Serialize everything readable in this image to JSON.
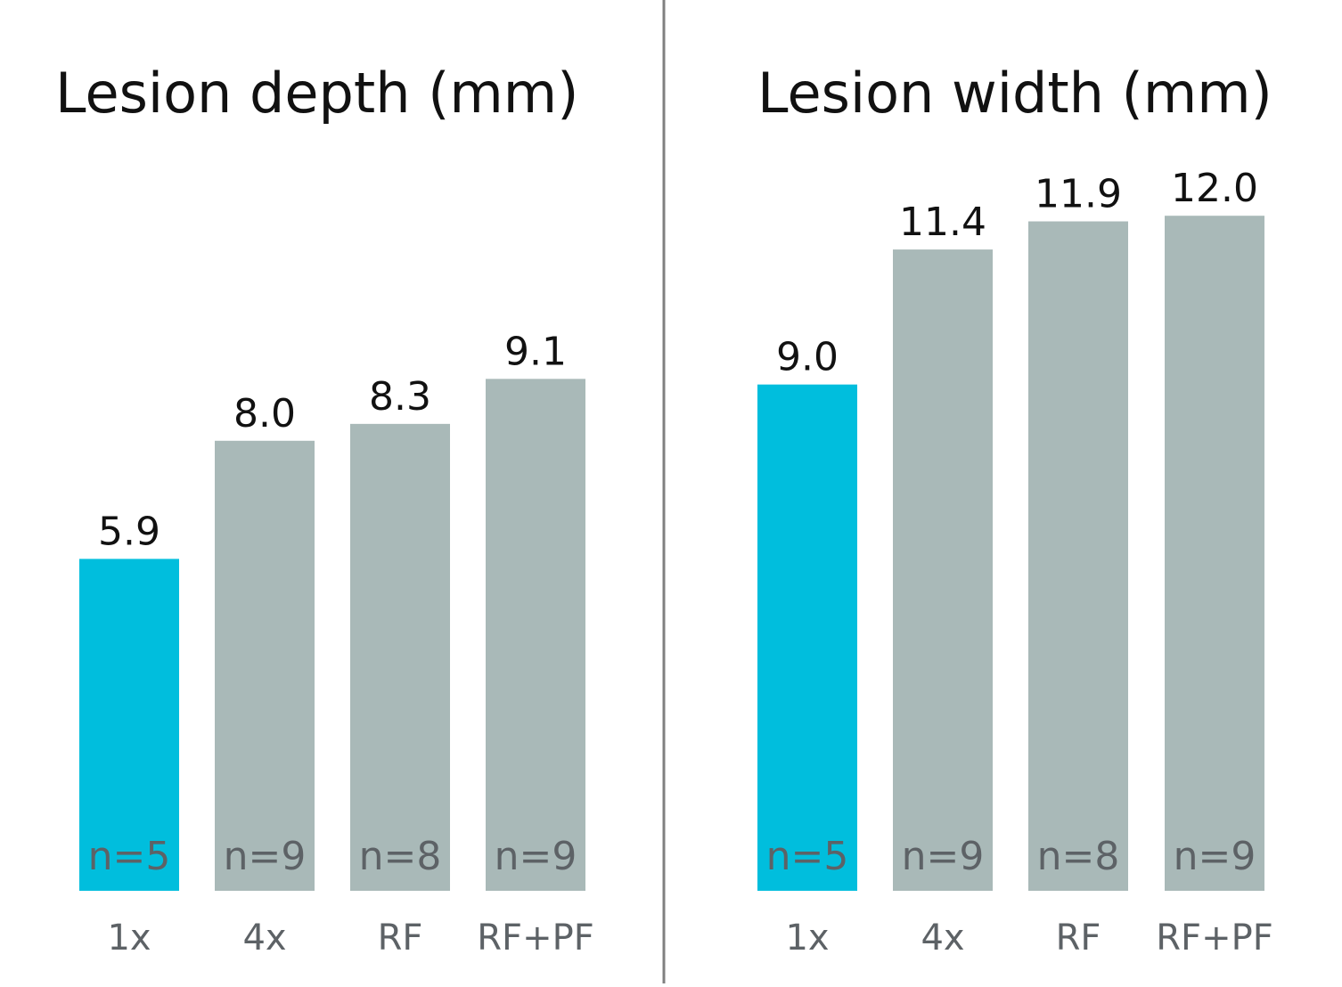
{
  "colors": {
    "highlight": "#00bedd",
    "bar": "#a9b9b8",
    "divider": "#808080"
  },
  "chart_data": [
    {
      "type": "bar",
      "title": "Lesion depth (mm)",
      "categories": [
        "1x",
        "4x",
        "RF",
        "RF+PF"
      ],
      "values": [
        5.9,
        8.0,
        8.3,
        9.1
      ],
      "value_labels": [
        "5.9",
        "8.0",
        "8.3",
        "9.1"
      ],
      "n_labels": [
        "n=5",
        "n=9",
        "n=8",
        "n=9"
      ],
      "highlight_index": 0,
      "ylim": [
        0,
        13.5
      ],
      "grid": false
    },
    {
      "type": "bar",
      "title": "Lesion width (mm)",
      "categories": [
        "1x",
        "4x",
        "RF",
        "RF+PF"
      ],
      "values": [
        9.0,
        11.4,
        11.9,
        12.0
      ],
      "value_labels": [
        "9.0",
        "11.4",
        "11.9",
        "12.0"
      ],
      "n_labels": [
        "n=5",
        "n=9",
        "n=8",
        "n=9"
      ],
      "highlight_index": 0,
      "ylim": [
        0,
        13.5
      ],
      "grid": false
    }
  ]
}
